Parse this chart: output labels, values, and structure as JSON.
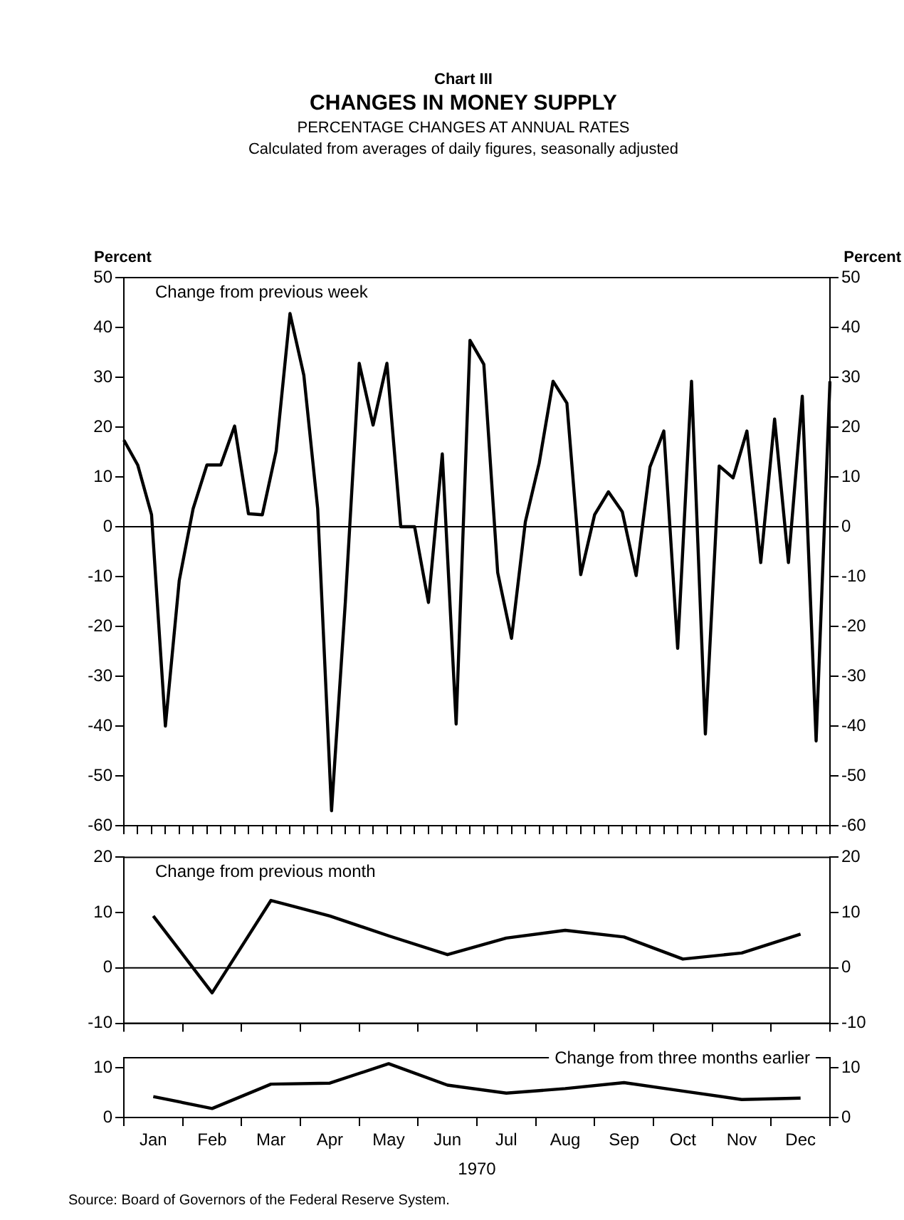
{
  "chart_data": [
    {
      "type": "line",
      "title": "CHANGES IN MONEY SUPPLY",
      "subtitle": "PERCENTAGE CHANGES AT ANNUAL RATES",
      "annotations": [
        "Chart III",
        "Calculated from averages of daily figures, seasonally adjusted"
      ],
      "ylabel": "Percent",
      "y2label": "Percent",
      "categories": [
        null,
        null,
        null,
        null,
        null,
        null,
        null,
        null,
        null,
        null,
        null,
        null,
        null,
        null,
        null,
        null,
        null,
        null,
        null,
        null,
        null,
        null,
        null,
        null,
        null,
        null,
        null,
        null,
        null,
        null,
        null,
        null,
        null,
        null,
        null,
        null,
        null,
        null,
        null,
        null,
        null,
        null,
        null,
        null,
        null,
        null,
        null,
        null,
        null,
        null,
        null,
        null
      ],
      "series": [
        {
          "name": "Change from previous week",
          "color": "#000000",
          "values": [
            17.4,
            12.4,
            2.4,
            -40,
            -10.8,
            3.6,
            12.4,
            12.4,
            20.2,
            2.6,
            2.4,
            15.2,
            42.8,
            30.4,
            3.6,
            -57,
            -15,
            32.8,
            20.4,
            32.8,
            0,
            0,
            -15.2,
            14.6,
            -39.6,
            37.4,
            32.6,
            -9.2,
            -22.4,
            1,
            12.8,
            29.2,
            24.8,
            -9.6,
            2.4,
            7,
            3,
            -9.8,
            12,
            19.2,
            -24.4,
            29.2,
            -41.6,
            12.2,
            9.8,
            19.2,
            -7.2,
            21.6,
            -7.2,
            26.2,
            -43,
            29.2
          ]
        }
      ],
      "ylim": [
        -60,
        50
      ],
      "yticks": [
        -60,
        -50,
        -40,
        -30,
        -20,
        -10,
        0,
        10,
        20,
        30,
        40,
        50
      ],
      "y2lim": [
        -60,
        50
      ],
      "y2ticks": [
        -60,
        -50,
        -40,
        -30,
        -20,
        -10,
        0,
        10,
        20,
        30,
        40,
        50
      ],
      "ref_lines": [
        {
          "axis": "y",
          "value": 0
        }
      ],
      "tick_labels": "y",
      "marker": "none"
    },
    {
      "type": "line",
      "categories": [
        null,
        null,
        null,
        null,
        null,
        null,
        null,
        null,
        null,
        null,
        null,
        null
      ],
      "series": [
        {
          "name": "Change from previous month",
          "color": "#000000",
          "values": [
            9.4,
            -4.5,
            12.2,
            9.4,
            5.8,
            2.4,
            5.4,
            6.8,
            5.6,
            1.6,
            2.7,
            6.1
          ]
        }
      ],
      "ylim": [
        -10,
        20
      ],
      "yticks": [
        -10,
        0,
        10,
        20
      ],
      "y2lim": [
        -10,
        20
      ],
      "y2ticks": [
        -10,
        0,
        10,
        20
      ],
      "ref_lines": [
        {
          "axis": "y",
          "value": 0
        }
      ],
      "tick_labels": "y",
      "marker": "none"
    },
    {
      "type": "line",
      "xlabel": "1970",
      "annotations": [
        "Source: Board of Governors of the Federal Reserve System."
      ],
      "categories": [
        "Jan",
        "Feb",
        "Mar",
        "Apr",
        "May",
        "Jun",
        "Jul",
        "Aug",
        "Sep",
        "Oct",
        "Nov",
        "Dec"
      ],
      "series": [
        {
          "name": "Change from three months earlier",
          "color": "#000000",
          "values": [
            4.2,
            1.8,
            6.7,
            6.9,
            10.8,
            6.5,
            4.9,
            5.8,
            7,
            5.3,
            3.6,
            3.9
          ]
        }
      ],
      "ylim": [
        0,
        12
      ],
      "yticks": [
        0,
        10
      ],
      "y2lim": [
        0,
        12
      ],
      "y2ticks": [
        0,
        10
      ],
      "marker": "none"
    }
  ]
}
